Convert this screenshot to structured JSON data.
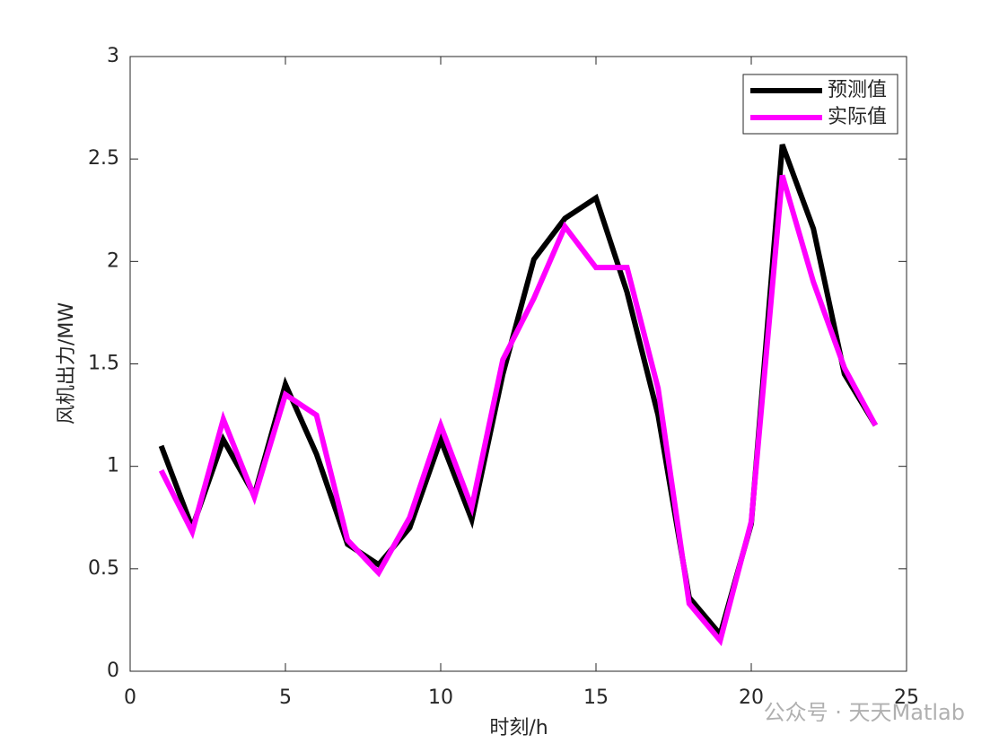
{
  "chart_data": {
    "type": "line",
    "xlabel": "时刻/h",
    "ylabel": "风机出力/MW",
    "x": [
      1,
      2,
      3,
      4,
      5,
      6,
      7,
      8,
      9,
      10,
      11,
      12,
      13,
      14,
      15,
      16,
      17,
      18,
      19,
      20,
      21,
      22,
      23,
      24
    ],
    "series": [
      {
        "name": "预测值",
        "color": "#000000",
        "values": [
          1.1,
          0.7,
          1.13,
          0.86,
          1.4,
          1.06,
          0.62,
          0.52,
          0.7,
          1.13,
          0.74,
          1.45,
          2.01,
          2.21,
          2.31,
          1.85,
          1.25,
          0.36,
          0.18,
          0.72,
          2.57,
          2.16,
          1.45,
          1.2
        ]
      },
      {
        "name": "实际值",
        "color": "#ff00ff",
        "values": [
          0.98,
          0.68,
          1.23,
          0.85,
          1.35,
          1.25,
          0.64,
          0.48,
          0.75,
          1.2,
          0.8,
          1.52,
          1.82,
          2.17,
          1.97,
          1.97,
          1.38,
          0.33,
          0.15,
          0.73,
          2.42,
          1.9,
          1.48,
          1.2
        ]
      }
    ],
    "xlim": [
      0,
      25
    ],
    "xticks": [
      0,
      5,
      10,
      15,
      20,
      25
    ],
    "ylim": [
      0,
      3
    ],
    "yticks": [
      0,
      0.5,
      1,
      1.5,
      2,
      2.5,
      3
    ],
    "legend": "northeast",
    "line_width": 6
  },
  "watermark": "公众号 · 天天Matlab"
}
